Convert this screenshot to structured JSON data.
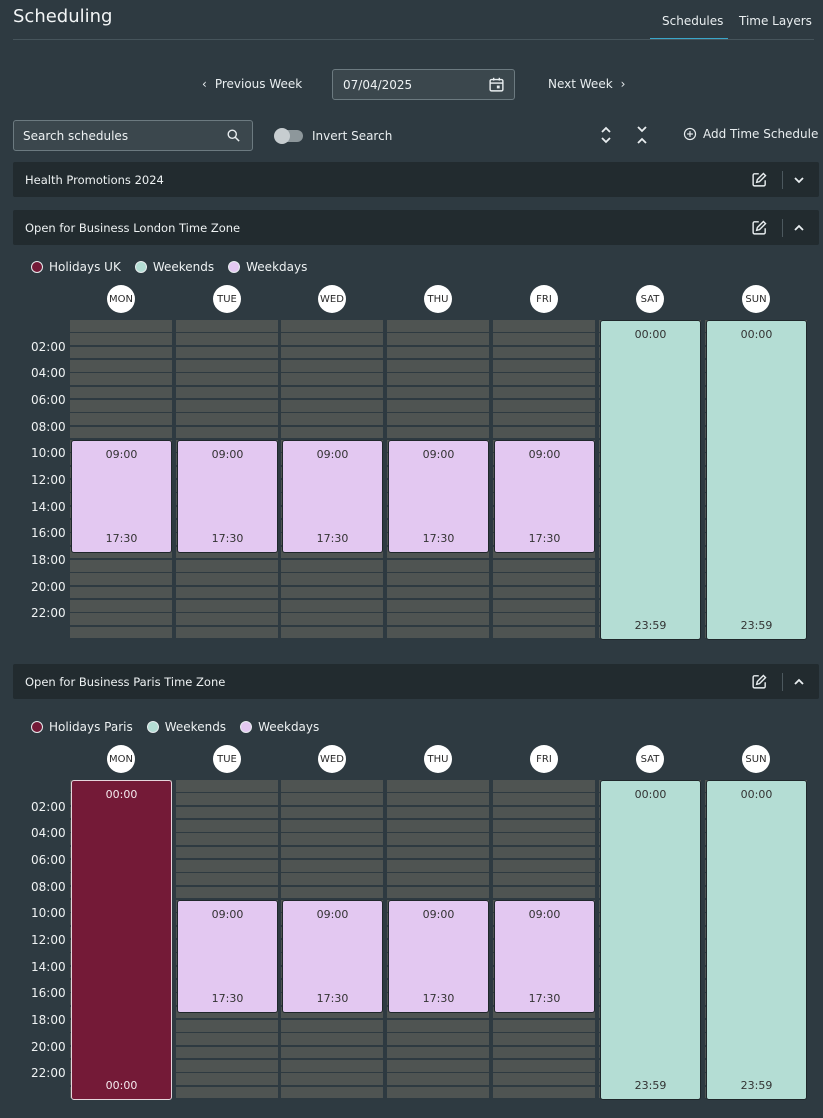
{
  "header": {
    "title": "Scheduling"
  },
  "tabs": {
    "schedules": "Schedules",
    "time_layers": "Time Layers"
  },
  "week_nav": {
    "prev_label": "Previous Week",
    "next_label": "Next Week",
    "date": "07/04/2025"
  },
  "search": {
    "placeholder": "Search schedules",
    "invert_label": "Invert Search",
    "add_label": "Add Time Schedule"
  },
  "panels": [
    {
      "title": "Health Promotions 2024",
      "collapsed": true
    },
    {
      "title": "Open for Business London Time Zone",
      "collapsed": false,
      "legend": [
        {
          "label": "Holidays UK",
          "color": "#741a37"
        },
        {
          "label": "Weekends",
          "color": "#b4ddd4"
        },
        {
          "label": "Weekdays",
          "color": "#e3c8f1"
        }
      ],
      "days": [
        "MON",
        "TUE",
        "WED",
        "THU",
        "FRI",
        "SAT",
        "SUN"
      ],
      "hours": [
        "02:00",
        "04:00",
        "06:00",
        "08:00",
        "10:00",
        "12:00",
        "14:00",
        "16:00",
        "18:00",
        "20:00",
        "22:00"
      ],
      "blocks": [
        {
          "day": 0,
          "type": "wk",
          "start": "09:00",
          "end": "17:30",
          "from": 9,
          "to": 17.5
        },
        {
          "day": 1,
          "type": "wk",
          "start": "09:00",
          "end": "17:30",
          "from": 9,
          "to": 17.5
        },
        {
          "day": 2,
          "type": "wk",
          "start": "09:00",
          "end": "17:30",
          "from": 9,
          "to": 17.5
        },
        {
          "day": 3,
          "type": "wk",
          "start": "09:00",
          "end": "17:30",
          "from": 9,
          "to": 17.5
        },
        {
          "day": 4,
          "type": "wk",
          "start": "09:00",
          "end": "17:30",
          "from": 9,
          "to": 17.5
        },
        {
          "day": 5,
          "type": "we",
          "start": "00:00",
          "end": "23:59",
          "from": 0,
          "to": 24
        },
        {
          "day": 6,
          "type": "we",
          "start": "00:00",
          "end": "23:59",
          "from": 0,
          "to": 24
        }
      ]
    },
    {
      "title": "Open for Business Paris Time Zone",
      "collapsed": false,
      "legend": [
        {
          "label": "Holidays Paris",
          "color": "#741a37"
        },
        {
          "label": "Weekends",
          "color": "#b4ddd4"
        },
        {
          "label": "Weekdays",
          "color": "#e3c8f1"
        }
      ],
      "days": [
        "MON",
        "TUE",
        "WED",
        "THU",
        "FRI",
        "SAT",
        "SUN"
      ],
      "hours": [
        "02:00",
        "04:00",
        "06:00",
        "08:00",
        "10:00",
        "12:00",
        "14:00",
        "16:00",
        "18:00",
        "20:00",
        "22:00"
      ],
      "blocks": [
        {
          "day": 0,
          "type": "hol",
          "start": "00:00",
          "end": "00:00",
          "from": 0,
          "to": 24
        },
        {
          "day": 1,
          "type": "wk",
          "start": "09:00",
          "end": "17:30",
          "from": 9,
          "to": 17.5
        },
        {
          "day": 2,
          "type": "wk",
          "start": "09:00",
          "end": "17:30",
          "from": 9,
          "to": 17.5
        },
        {
          "day": 3,
          "type": "wk",
          "start": "09:00",
          "end": "17:30",
          "from": 9,
          "to": 17.5
        },
        {
          "day": 4,
          "type": "wk",
          "start": "09:00",
          "end": "17:30",
          "from": 9,
          "to": 17.5
        },
        {
          "day": 5,
          "type": "we",
          "start": "00:00",
          "end": "23:59",
          "from": 0,
          "to": 24
        },
        {
          "day": 6,
          "type": "we",
          "start": "00:00",
          "end": "23:59",
          "from": 0,
          "to": 24
        }
      ]
    }
  ]
}
